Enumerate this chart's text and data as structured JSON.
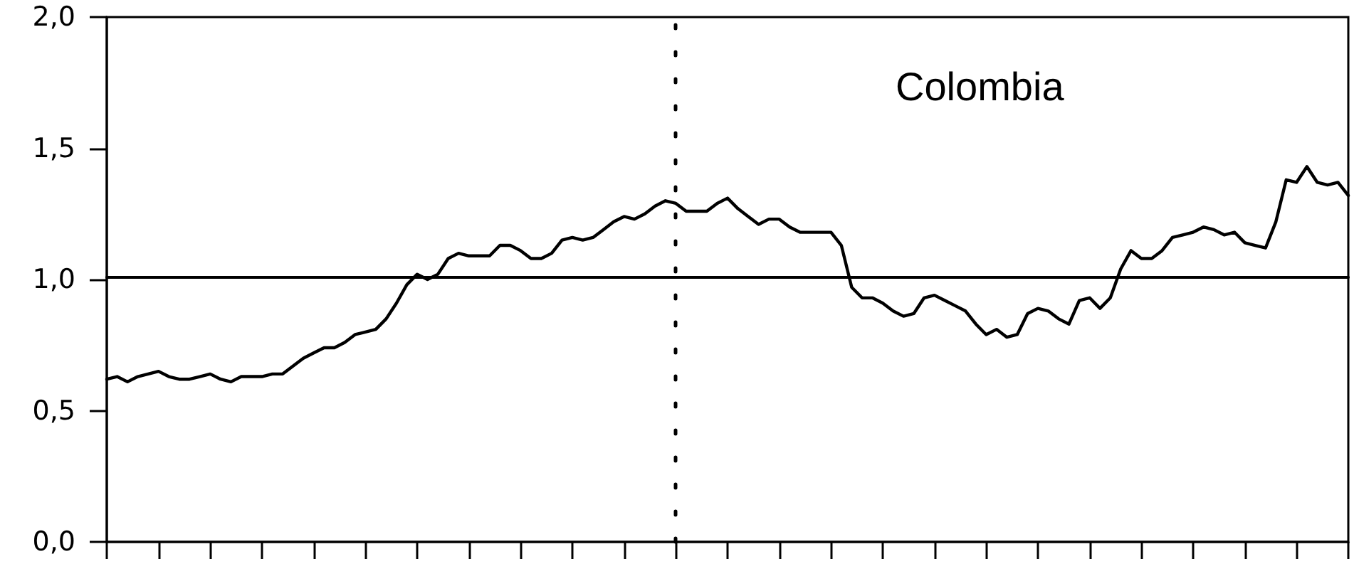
{
  "chart_data": {
    "type": "line",
    "annotations": [
      "Colombia"
    ],
    "categories": [
      null,
      null,
      null,
      null,
      null,
      null,
      null,
      null,
      null,
      null,
      null,
      null,
      null,
      null,
      null,
      null,
      null,
      null,
      null,
      null,
      null,
      null,
      null,
      null,
      null,
      null,
      null,
      null,
      null,
      null,
      null,
      null,
      null,
      null,
      null,
      null,
      null,
      null,
      null,
      null,
      null,
      null,
      null,
      null,
      null,
      null,
      null,
      null,
      null,
      null,
      null,
      null,
      null,
      null,
      null,
      null,
      null,
      null,
      null,
      null,
      null,
      null,
      null,
      null,
      null,
      null,
      null,
      null,
      null,
      null,
      null,
      null,
      null,
      null,
      null,
      null,
      null,
      null,
      null,
      null,
      null,
      null,
      null,
      null,
      null,
      null,
      null,
      null,
      null,
      null,
      null,
      null,
      null,
      null,
      null,
      null,
      null,
      null,
      null,
      null,
      null,
      null,
      null,
      null,
      null,
      null,
      null,
      null,
      null,
      null,
      null,
      null,
      null,
      null,
      null,
      null,
      null,
      null,
      null,
      null,
      null
    ],
    "values": [
      0.62,
      0.63,
      0.61,
      0.63,
      0.64,
      0.65,
      0.63,
      0.62,
      0.62,
      0.63,
      0.64,
      0.62,
      0.61,
      0.63,
      0.63,
      0.63,
      0.64,
      0.64,
      0.67,
      0.7,
      0.72,
      0.74,
      0.74,
      0.76,
      0.79,
      0.8,
      0.81,
      0.85,
      0.91,
      0.98,
      1.02,
      1.0,
      1.02,
      1.08,
      1.1,
      1.09,
      1.09,
      1.09,
      1.13,
      1.13,
      1.11,
      1.08,
      1.08,
      1.1,
      1.15,
      1.16,
      1.15,
      1.16,
      1.19,
      1.22,
      1.24,
      1.23,
      1.25,
      1.28,
      1.3,
      1.29,
      1.26,
      1.26,
      1.26,
      1.29,
      1.31,
      1.27,
      1.24,
      1.21,
      1.23,
      1.23,
      1.2,
      1.18,
      1.18,
      1.18,
      1.18,
      1.13,
      0.97,
      0.93,
      0.93,
      0.91,
      0.88,
      0.86,
      0.87,
      0.93,
      0.94,
      0.92,
      0.9,
      0.88,
      0.83,
      0.79,
      0.81,
      0.78,
      0.79,
      0.87,
      0.89,
      0.88,
      0.85,
      0.83,
      0.92,
      0.93,
      0.89,
      0.93,
      1.04,
      1.11,
      1.08,
      1.08,
      1.11,
      1.16,
      1.17,
      1.18,
      1.2,
      1.19,
      1.17,
      1.18,
      1.14,
      1.13,
      1.12,
      1.22,
      1.38,
      1.37,
      1.43,
      1.37,
      1.36,
      1.37,
      1.32
    ],
    "color": "#000000",
    "marker": "none",
    "line_style": "solid",
    "ylim": [
      0,
      2
    ],
    "yticks": [
      {
        "value": 0,
        "label": "0,0"
      },
      {
        "value": 0.5,
        "label": "0,5"
      },
      {
        "value": 1,
        "label": "1,0"
      },
      {
        "value": 1.5,
        "label": "1,5"
      },
      {
        "value": 2,
        "label": "2,0"
      }
    ],
    "tick_labels": "y",
    "ref_lines": [
      {
        "axis": "y",
        "value": 1.01,
        "color": "#000000",
        "line_style": "solid"
      }
    ]
  }
}
